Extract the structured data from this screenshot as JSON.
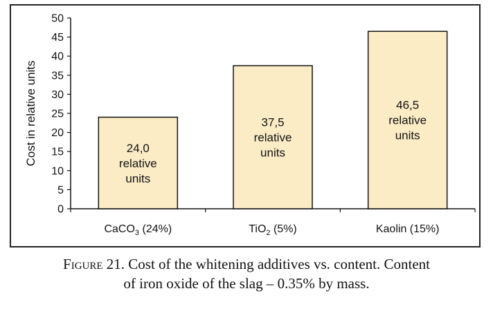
{
  "chart_data": {
    "type": "bar",
    "categories": [
      "CaCO3 (24%)",
      "TiO2 (5%)",
      "Kaolin (15%)"
    ],
    "category_parts": [
      {
        "base": "CaCO",
        "sub": "3",
        "rest": " (24%)"
      },
      {
        "base": "TiO",
        "sub": "2",
        "rest": " (5%)"
      },
      {
        "base": "Kaolin (15%)",
        "sub": "",
        "rest": ""
      }
    ],
    "values": [
      24.0,
      37.5,
      46.5
    ],
    "data_labels": [
      [
        "24,0",
        "relative",
        "units"
      ],
      [
        "37,5",
        "relative",
        "units"
      ],
      [
        "46,5",
        "relative",
        "units"
      ]
    ],
    "title": "",
    "xlabel": "",
    "ylabel": "Cost in relative units",
    "ylim": [
      0,
      50
    ],
    "yticks": [
      0,
      5,
      10,
      15,
      20,
      25,
      30,
      35,
      40,
      45,
      50
    ],
    "grid": false,
    "colors": {
      "bar_fill": "#fbecc6",
      "bar_stroke": "#111111"
    }
  },
  "caption": {
    "label": "Figure 21.",
    "text": " Cost of the whitening additives vs. content. Content",
    "line2": "of iron oxide of the slag – 0.35% by mass."
  }
}
